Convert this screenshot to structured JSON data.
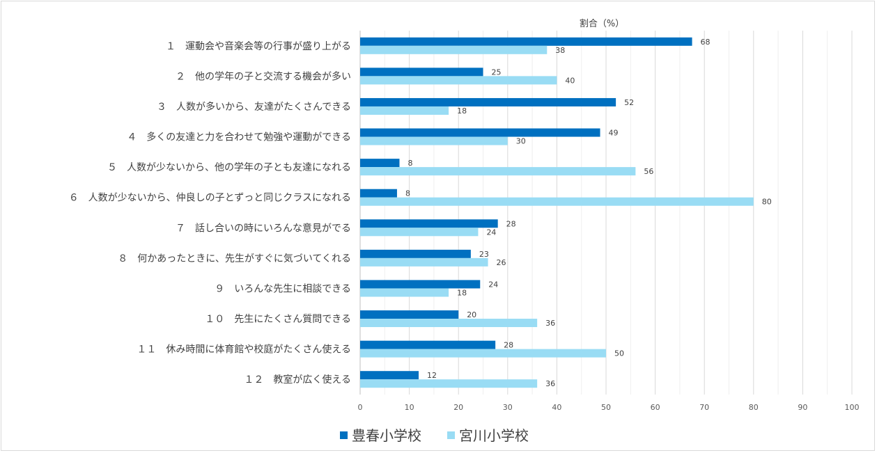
{
  "chart_data": {
    "type": "bar",
    "orientation": "horizontal",
    "title": "",
    "xlabel": "割合（%）",
    "ylabel": "",
    "xlim": [
      0,
      100
    ],
    "xticks": [
      0,
      10,
      20,
      30,
      40,
      50,
      60,
      70,
      80,
      90,
      100
    ],
    "grid": true,
    "legend_position": "bottom",
    "categories": [
      "１　運動会や音楽会等の行事が盛り上がる",
      "２　他の学年の子と交流する機会が多い",
      "３　人数が多いから、友達がたくさんできる",
      "４　多くの友達と力を合わせて勉強や運動ができる",
      "５　人数が少ないから、他の学年の子とも友達になれる",
      "６　人数が少ないから、仲良しの子とずっと同じクラスになれる",
      "７　話し合いの時にいろんな意見がでる",
      "８　何かあったときに、先生がすぐに気づいてくれる",
      "９　いろんな先生に相談できる",
      "１０　先生にたくさん質問できる",
      "１１　休み時間に体育館や校庭がたくさん使える",
      "１２　教室が広く使える"
    ],
    "series": [
      {
        "name": "豊春小学校",
        "color": "#0070c0",
        "values": [
          67.5,
          25,
          52,
          48.8,
          8,
          7.5,
          28,
          22.5,
          24.4,
          20,
          27.5,
          11.9
        ],
        "labels": [
          "68",
          "25",
          "52",
          "49",
          "8",
          "8",
          "28",
          "23",
          "24",
          "20",
          "28",
          "12"
        ]
      },
      {
        "name": "宮川小学校",
        "color": "#99dcf4",
        "values": [
          38,
          40,
          18,
          30,
          56,
          80,
          24,
          26,
          18,
          36,
          50,
          36
        ],
        "labels": [
          "38",
          "40",
          "18",
          "30",
          "56",
          "80",
          "24",
          "26",
          "18",
          "36",
          "50",
          "36"
        ]
      }
    ]
  }
}
